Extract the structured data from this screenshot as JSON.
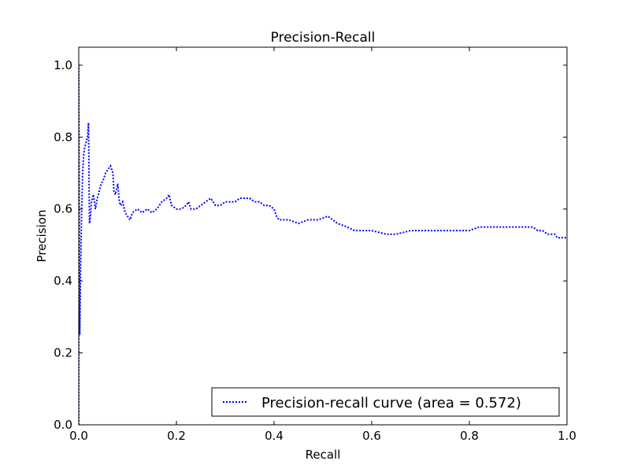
{
  "colors": {
    "curve": "#0000ff",
    "axes": "#000000",
    "background": "#ffffff"
  },
  "chart_data": {
    "type": "line",
    "title": "Precision-Recall",
    "xlabel": "Recall",
    "ylabel": "Precision",
    "xlim": [
      0.0,
      1.0
    ],
    "ylim": [
      0.0,
      1.05
    ],
    "xticks": [
      "0.0",
      "0.2",
      "0.4",
      "0.6",
      "0.8",
      "1.0"
    ],
    "yticks": [
      "0.0",
      "0.2",
      "0.4",
      "0.6",
      "0.8",
      "1.0"
    ],
    "grid": false,
    "legend_position": "lower-right",
    "line_style": "dotted",
    "series": [
      {
        "name": "Precision-recall curve (area = 0.572)",
        "x": [
          0.0,
          0.0,
          0.002,
          0.004,
          0.006,
          0.008,
          0.01,
          0.012,
          0.014,
          0.016,
          0.018,
          0.02,
          0.022,
          0.024,
          0.026,
          0.03,
          0.034,
          0.038,
          0.042,
          0.046,
          0.05,
          0.055,
          0.06,
          0.065,
          0.07,
          0.072,
          0.075,
          0.08,
          0.083,
          0.086,
          0.09,
          0.095,
          0.1,
          0.105,
          0.11,
          0.12,
          0.13,
          0.14,
          0.15,
          0.16,
          0.17,
          0.18,
          0.185,
          0.19,
          0.2,
          0.21,
          0.22,
          0.225,
          0.23,
          0.24,
          0.25,
          0.26,
          0.27,
          0.28,
          0.29,
          0.3,
          0.31,
          0.32,
          0.33,
          0.34,
          0.35,
          0.36,
          0.37,
          0.38,
          0.39,
          0.4,
          0.405,
          0.41,
          0.43,
          0.45,
          0.47,
          0.49,
          0.51,
          0.52,
          0.53,
          0.55,
          0.565,
          0.57,
          0.6,
          0.63,
          0.65,
          0.68,
          0.7,
          0.72,
          0.75,
          0.78,
          0.8,
          0.82,
          0.85,
          0.87,
          0.9,
          0.92,
          0.93,
          0.94,
          0.95,
          0.96,
          0.97,
          0.975,
          0.98,
          0.99,
          1.0
        ],
        "y": [
          0.0,
          1.0,
          0.25,
          0.45,
          0.6,
          0.7,
          0.75,
          0.77,
          0.78,
          0.79,
          0.8,
          0.84,
          0.56,
          0.58,
          0.62,
          0.64,
          0.6,
          0.63,
          0.65,
          0.67,
          0.68,
          0.7,
          0.71,
          0.72,
          0.7,
          0.65,
          0.64,
          0.67,
          0.62,
          0.61,
          0.62,
          0.59,
          0.58,
          0.57,
          0.59,
          0.6,
          0.59,
          0.6,
          0.59,
          0.6,
          0.62,
          0.63,
          0.64,
          0.61,
          0.6,
          0.6,
          0.61,
          0.62,
          0.6,
          0.6,
          0.61,
          0.62,
          0.63,
          0.61,
          0.61,
          0.62,
          0.62,
          0.62,
          0.63,
          0.63,
          0.63,
          0.62,
          0.62,
          0.61,
          0.61,
          0.6,
          0.58,
          0.57,
          0.57,
          0.56,
          0.57,
          0.57,
          0.58,
          0.57,
          0.56,
          0.55,
          0.54,
          0.54,
          0.54,
          0.53,
          0.53,
          0.54,
          0.54,
          0.54,
          0.54,
          0.54,
          0.54,
          0.55,
          0.55,
          0.55,
          0.55,
          0.55,
          0.55,
          0.54,
          0.54,
          0.53,
          0.53,
          0.53,
          0.52,
          0.52,
          0.52
        ]
      }
    ]
  }
}
